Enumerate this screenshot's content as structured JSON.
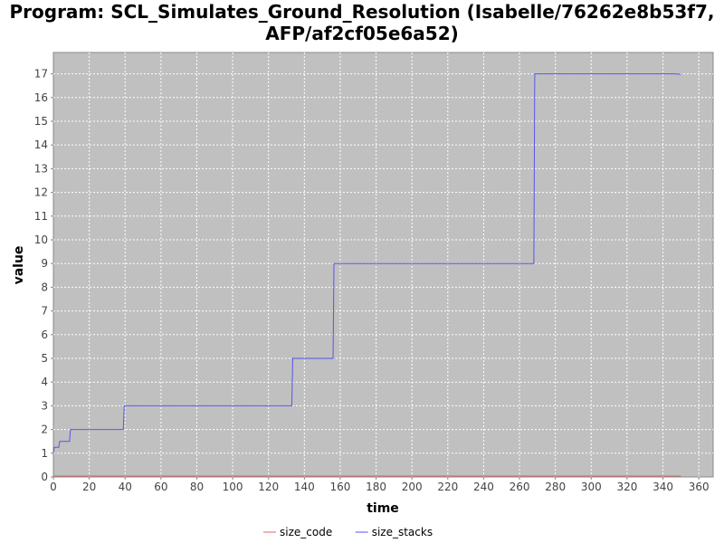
{
  "chart_data": {
    "type": "line",
    "title_lines": [
      "Program: SCL_Simulates_Ground_Resolution (Isabelle/76262e8b53f7,",
      "AFP/af2cf05e6a52)"
    ],
    "xlabel": "time",
    "ylabel": "value",
    "xlim": [
      0,
      368
    ],
    "ylim": [
      0,
      17.9
    ],
    "xticks": [
      0,
      20,
      40,
      60,
      80,
      100,
      120,
      140,
      160,
      180,
      200,
      220,
      240,
      260,
      280,
      300,
      320,
      340,
      360
    ],
    "yticks": [
      0,
      1,
      2,
      3,
      4,
      5,
      6,
      7,
      8,
      9,
      10,
      11,
      12,
      13,
      14,
      15,
      16,
      17
    ],
    "grid": true,
    "legend_position": "bottom-center",
    "background_color": "#c0c0c0",
    "grid_color": "#ffffff",
    "series": [
      {
        "name": "size_code",
        "color": "#e06666",
        "points": [
          [
            0,
            0.04
          ],
          [
            350,
            0.04
          ]
        ]
      },
      {
        "name": "size_stacks",
        "color": "#5555ee",
        "points": [
          [
            0,
            1.0
          ],
          [
            0.5,
            1.25
          ],
          [
            3,
            1.25
          ],
          [
            3.5,
            1.5
          ],
          [
            9,
            1.5
          ],
          [
            9.5,
            2.0
          ],
          [
            39,
            2.0
          ],
          [
            39.5,
            3.0
          ],
          [
            133,
            3.0
          ],
          [
            133.5,
            5.0
          ],
          [
            156,
            5.0
          ],
          [
            156.5,
            9.0
          ],
          [
            268,
            9.0
          ],
          [
            268.5,
            17.0
          ],
          [
            347,
            17.0
          ],
          [
            350,
            16.98
          ]
        ]
      }
    ]
  }
}
